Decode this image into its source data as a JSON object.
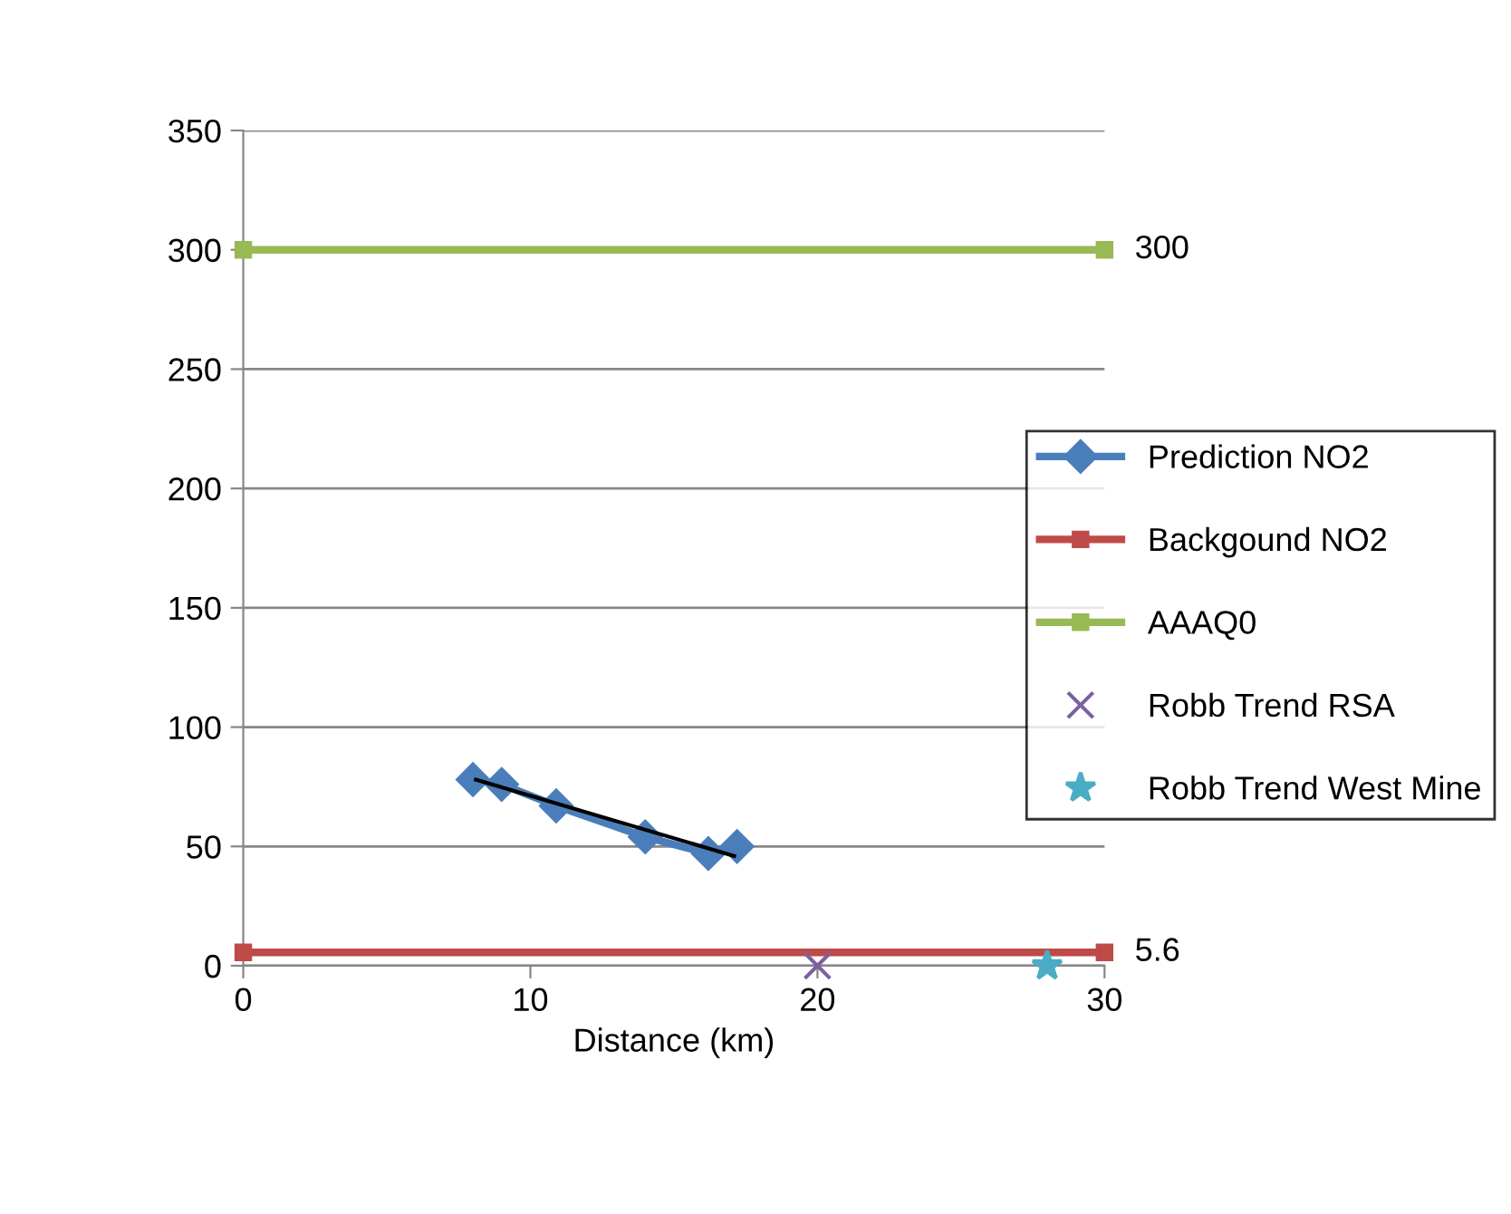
{
  "chart_data": {
    "type": "line",
    "xlabel": "Distance (km)",
    "xlim": [
      0,
      30
    ],
    "xticks": [
      0,
      10,
      20,
      30
    ],
    "ylim": [
      0,
      350
    ],
    "yticks": [
      0,
      50,
      100,
      150,
      200,
      250,
      300,
      350
    ],
    "grid": "y",
    "legend": "right",
    "series": [
      {
        "name": "Prediction NO2",
        "color": "#4a7ebb",
        "marker": "diamond",
        "x": [
          8.0,
          9.0,
          10.9,
          14.0,
          16.2,
          17.2
        ],
        "values": [
          78,
          76,
          67,
          54,
          47,
          50
        ]
      },
      {
        "name": "Backgound NO2",
        "color": "#be4b48",
        "marker": "square",
        "x": [
          0,
          30
        ],
        "values": [
          5.6,
          5.6
        ]
      },
      {
        "name": "AAAQ0",
        "color": "#98b954",
        "marker": "square",
        "x": [
          0,
          30
        ],
        "values": [
          300,
          300
        ]
      },
      {
        "name": "Robb Trend RSA",
        "type": "scatter",
        "color": "#7d60a0",
        "marker": "cross",
        "x": [
          20
        ],
        "values": [
          0
        ]
      },
      {
        "name": "Robb Trend West Mine",
        "type": "scatter",
        "color": "#4bacc6",
        "marker": "star",
        "x": [
          28
        ],
        "values": [
          0
        ]
      },
      {
        "type": "line",
        "color": "#000000",
        "marker": "none",
        "x": [
          8.1,
          17.1
        ],
        "values": [
          78,
          46
        ]
      }
    ],
    "annotations": [
      {
        "text": "300",
        "x": 30,
        "y": 300
      },
      {
        "text": "5.6",
        "x": 30,
        "y": 5.6
      }
    ]
  }
}
